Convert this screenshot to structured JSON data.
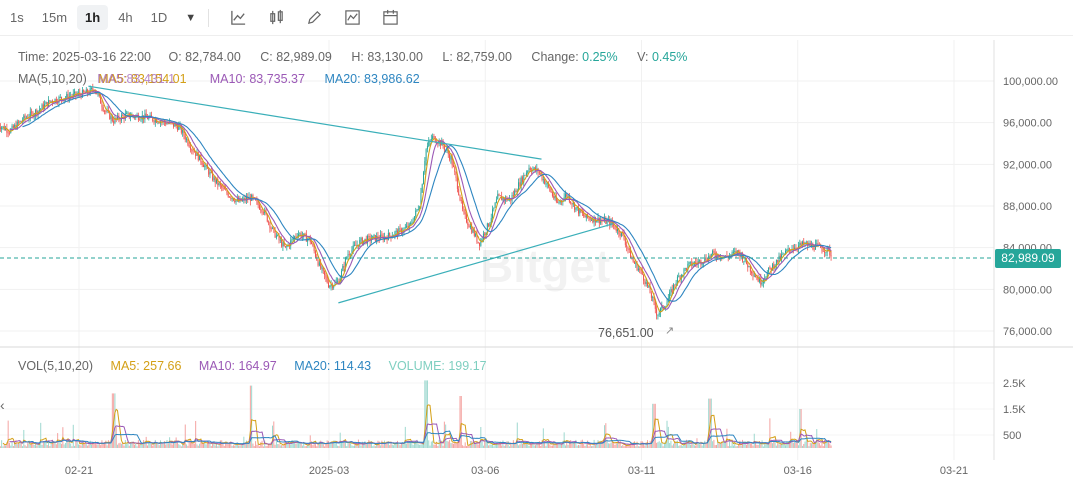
{
  "toolbar": {
    "timeframes": [
      "1s",
      "15m",
      "1h",
      "4h",
      "1D"
    ],
    "active_timeframe": "1h",
    "tools": [
      "indicator-icon",
      "candle-type-icon",
      "draw-pen-icon",
      "compare-icon",
      "calendar-icon"
    ]
  },
  "ohlc": {
    "time_label": "Time:",
    "time": "2025-03-16 22:00",
    "open_label": "O:",
    "open": "82,784.00",
    "close_label": "C:",
    "close": "82,989.09",
    "high_label": "H:",
    "high": "83,130.00",
    "low_label": "L:",
    "low": "82,759.00",
    "change_label": "Change:",
    "change": "0.25%",
    "amp_label": "V:",
    "amp": "0.45%"
  },
  "ma_legend": {
    "title": "MA(5,10,20)",
    "ma5": "MA5: 83,154.01",
    "ma10": "MA10: 83,735.37",
    "ma20": "MA20: 83,986.62",
    "overlap_text": "MA5:83,431.1"
  },
  "vol_legend": {
    "title": "VOL(5,10,20)",
    "ma5": "MA5: 257.66",
    "ma10": "MA10: 164.97",
    "ma20": "MA20: 114.43",
    "volume": "VOLUME: 199.17"
  },
  "current_price_tag": "82,989.09",
  "low_marker": "76,651.00",
  "watermark": "Bitget",
  "colors": {
    "up": "#26a69a",
    "down": "#ef5350",
    "ma5": "#d4a017",
    "ma10": "#9b59b6",
    "ma20": "#2e86c1",
    "trendline": "#3aafb9"
  },
  "chart_data": {
    "type": "candlestick",
    "price_axis_ticks": [
      "100,000.00",
      "96,000.00",
      "92,000.00",
      "88,000.00",
      "84,000.00",
      "80,000.00",
      "76,000.00"
    ],
    "price_ylim": [
      75000,
      101500
    ],
    "volume_axis_ticks": [
      "2.5K",
      "1.5K",
      "500"
    ],
    "volume_ylim": [
      0,
      3000
    ],
    "x_tick_labels": [
      "02-21",
      "2025-03",
      "03-06",
      "03-11",
      "03-16",
      "03-21"
    ],
    "x_tick_days": [
      0,
      8,
      13,
      18,
      23,
      28
    ],
    "last_day": 24.1,
    "close_path": [
      [
        -2.6,
        95800
      ],
      [
        -2.2,
        95200
      ],
      [
        -1.8,
        96300
      ],
      [
        -1.3,
        97200
      ],
      [
        -0.9,
        98100
      ],
      [
        -0.2,
        98600
      ],
      [
        0.3,
        98900
      ],
      [
        0.5,
        99300
      ],
      [
        0.8,
        97300
      ],
      [
        1.1,
        96200
      ],
      [
        1.5,
        96700
      ],
      [
        2.0,
        96600
      ],
      [
        2.6,
        96200
      ],
      [
        3.2,
        95600
      ],
      [
        3.6,
        93600
      ],
      [
        3.9,
        92400
      ],
      [
        4.3,
        90600
      ],
      [
        4.7,
        89300
      ],
      [
        5.1,
        88400
      ],
      [
        5.5,
        88800
      ],
      [
        5.9,
        87600
      ],
      [
        6.2,
        85600
      ],
      [
        6.6,
        83900
      ],
      [
        7.0,
        85400
      ],
      [
        7.4,
        84700
      ],
      [
        7.7,
        82200
      ],
      [
        8.0,
        80400
      ],
      [
        8.3,
        80700
      ],
      [
        8.6,
        83400
      ],
      [
        9.0,
        84600
      ],
      [
        9.4,
        84900
      ],
      [
        9.8,
        85000
      ],
      [
        10.3,
        85600
      ],
      [
        10.6,
        86100
      ],
      [
        10.9,
        88200
      ],
      [
        11.1,
        93400
      ],
      [
        11.3,
        94600
      ],
      [
        11.6,
        94000
      ],
      [
        11.9,
        92600
      ],
      [
        12.1,
        90100
      ],
      [
        12.3,
        87200
      ],
      [
        12.6,
        85600
      ],
      [
        12.8,
        84400
      ],
      [
        13.1,
        86200
      ],
      [
        13.4,
        88800
      ],
      [
        13.8,
        88600
      ],
      [
        14.1,
        90200
      ],
      [
        14.4,
        91700
      ],
      [
        14.7,
        91300
      ],
      [
        15.0,
        89900
      ],
      [
        15.3,
        88200
      ],
      [
        15.6,
        89100
      ],
      [
        15.9,
        87800
      ],
      [
        16.2,
        86900
      ],
      [
        16.6,
        86700
      ],
      [
        17.0,
        86400
      ],
      [
        17.4,
        85200
      ],
      [
        17.7,
        82800
      ],
      [
        18.0,
        81600
      ],
      [
        18.3,
        79500
      ],
      [
        18.5,
        77600
      ],
      [
        18.8,
        78700
      ],
      [
        19.1,
        80800
      ],
      [
        19.5,
        82300
      ],
      [
        19.9,
        82700
      ],
      [
        20.3,
        83400
      ],
      [
        20.7,
        83100
      ],
      [
        21.1,
        83600
      ],
      [
        21.5,
        81900
      ],
      [
        21.8,
        80700
      ],
      [
        22.1,
        81900
      ],
      [
        22.5,
        83200
      ],
      [
        22.8,
        84000
      ],
      [
        23.2,
        84300
      ],
      [
        23.6,
        84100
      ],
      [
        24.0,
        83700
      ],
      [
        24.1,
        82989
      ]
    ],
    "trendlines": [
      {
        "from": [
          0.3,
          99500
        ],
        "to": [
          14.8,
          92500
        ]
      },
      {
        "from": [
          8.3,
          78700
        ],
        "to": [
          17.1,
          86300
        ]
      }
    ],
    "volume_spikes": [
      {
        "day": 1.1,
        "value": 2100
      },
      {
        "day": 5.5,
        "value": 2400
      },
      {
        "day": 11.1,
        "value": 2600
      },
      {
        "day": 12.2,
        "value": 2000
      },
      {
        "day": 18.4,
        "value": 1700
      },
      {
        "day": 20.2,
        "value": 1900
      },
      {
        "day": 23.1,
        "value": 1500
      }
    ]
  }
}
